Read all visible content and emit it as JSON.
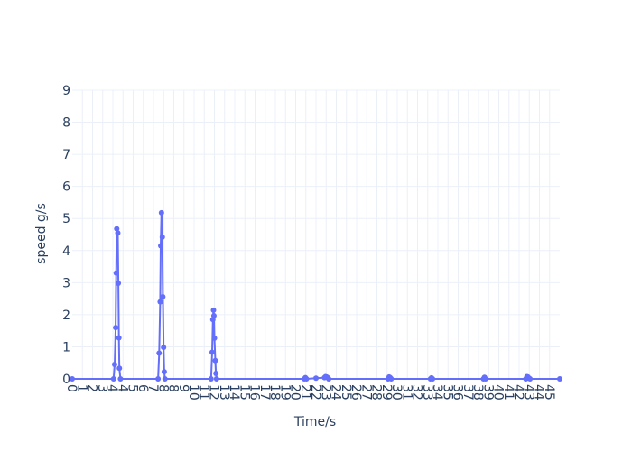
{
  "chart_data": {
    "type": "line",
    "title": "",
    "xlabel": "Time/s",
    "ylabel": "speed g/s",
    "ylim": [
      0,
      9
    ],
    "xlim": [
      0,
      46
    ],
    "y_ticks": [
      0,
      1,
      2,
      3,
      4,
      5,
      6,
      7,
      8,
      9
    ],
    "x_tick_labels": [
      "0",
      "1",
      "2",
      "3",
      "4",
      "4",
      "5",
      "6",
      "7",
      "8",
      "8",
      "9",
      "10",
      "11",
      "12",
      "13",
      "14",
      "15",
      "16",
      "17",
      "18",
      "19",
      "20",
      "21",
      "22",
      "23",
      "24",
      "25",
      "26",
      "27",
      "28",
      "29",
      "30",
      "31",
      "32",
      "33",
      "34",
      "35",
      "36",
      "37",
      "38",
      "39",
      "40",
      "41",
      "42",
      "43",
      "44",
      "45"
    ],
    "grid": true,
    "line_color": "#636efa",
    "series": [
      {
        "values": [
          [
            0,
            0.0
          ],
          [
            3.9,
            0.0
          ],
          [
            4.0,
            0.45
          ],
          [
            4.1,
            1.6
          ],
          [
            4.15,
            3.3
          ],
          [
            4.2,
            4.68
          ],
          [
            4.3,
            4.55
          ],
          [
            4.35,
            2.98
          ],
          [
            4.4,
            1.28
          ],
          [
            4.45,
            0.33
          ],
          [
            4.55,
            0.0
          ],
          [
            8.1,
            0.0
          ],
          [
            8.2,
            0.8
          ],
          [
            8.3,
            2.4
          ],
          [
            8.35,
            4.15
          ],
          [
            8.42,
            5.18
          ],
          [
            8.5,
            4.42
          ],
          [
            8.55,
            2.56
          ],
          [
            8.62,
            0.98
          ],
          [
            8.68,
            0.22
          ],
          [
            8.75,
            0.0
          ],
          [
            13.1,
            0.0
          ],
          [
            13.2,
            0.83
          ],
          [
            13.27,
            1.85
          ],
          [
            13.33,
            2.14
          ],
          [
            13.37,
            1.97
          ],
          [
            13.42,
            1.27
          ],
          [
            13.5,
            0.57
          ],
          [
            13.56,
            0.17
          ],
          [
            13.62,
            0.0
          ],
          [
            21.9,
            0.0
          ],
          [
            22.0,
            0.04
          ],
          [
            22.1,
            0.0
          ],
          [
            23.0,
            0.02
          ],
          [
            23.8,
            0.04
          ],
          [
            23.9,
            0.07
          ],
          [
            24.0,
            0.06
          ],
          [
            24.1,
            0.04
          ],
          [
            24.2,
            0.0
          ],
          [
            29.8,
            0.0
          ],
          [
            29.9,
            0.06
          ],
          [
            30.0,
            0.04
          ],
          [
            30.1,
            0.0
          ],
          [
            33.8,
            0.0
          ],
          [
            33.9,
            0.03
          ],
          [
            34.0,
            0.0
          ],
          [
            38.8,
            0.0
          ],
          [
            38.9,
            0.05
          ],
          [
            39.0,
            0.0
          ],
          [
            42.8,
            0.0
          ],
          [
            42.9,
            0.07
          ],
          [
            43.0,
            0.06
          ],
          [
            43.1,
            0.02
          ],
          [
            43.2,
            0.0
          ],
          [
            46,
            0.0
          ]
        ]
      }
    ]
  }
}
